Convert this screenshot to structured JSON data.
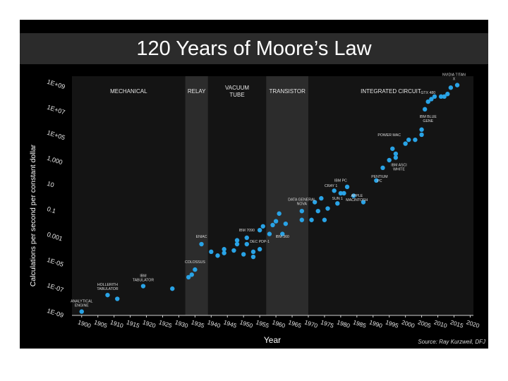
{
  "title": "120 Years of Moore’s Law",
  "colors": {
    "background": "#000000",
    "plot_bg": "#141414",
    "shaded_era": "#2c2c2c",
    "point": "#29a3e6",
    "title_bar": "#2b2b2b",
    "text": "#ffffff"
  },
  "chart_data": {
    "type": "scatter",
    "title": "120 Years of Moore’s Law",
    "xlabel": "Year",
    "ylabel": "Calculations per second per constant dollar",
    "source": "Source: Ray Kurzweil, DFJ",
    "y_scale": "log",
    "xlim": [
      1897,
      2021
    ],
    "ylim_log10": [
      -9.4,
      9.4
    ],
    "x_ticks": [
      1900,
      1905,
      1910,
      1915,
      1920,
      1925,
      1930,
      1935,
      1940,
      1945,
      1950,
      1955,
      1960,
      1965,
      1970,
      1975,
      1980,
      1985,
      1990,
      1995,
      2000,
      2005,
      2010,
      2015,
      2020
    ],
    "y_ticks": [
      {
        "label": "1E+09",
        "exp": 9
      },
      {
        "label": "1E+07",
        "exp": 7
      },
      {
        "label": "1E+05",
        "exp": 5
      },
      {
        "label": "1,000",
        "exp": 3
      },
      {
        "label": "10",
        "exp": 1
      },
      {
        "label": "0.1",
        "exp": -1
      },
      {
        "label": "0.001",
        "exp": -3
      },
      {
        "label": "1E-05",
        "exp": -5
      },
      {
        "label": "1E-07",
        "exp": -7
      },
      {
        "label": "1E-09",
        "exp": -9
      }
    ],
    "eras": [
      {
        "label": "MECHANICAL",
        "start": 1897,
        "end": 1932,
        "shaded": false
      },
      {
        "label": "RELAY",
        "start": 1932,
        "end": 1939,
        "shaded": true
      },
      {
        "label": "VACUUM TUBE",
        "start": 1939,
        "end": 1957,
        "shaded": false
      },
      {
        "label": "TRANSISTOR",
        "start": 1957,
        "end": 1970,
        "shaded": true
      },
      {
        "label": "INTEGRATED CIRCUIT",
        "start": 1970,
        "end": 2021,
        "shaded": false
      }
    ],
    "points": [
      {
        "x": 1900,
        "y": -9.1
      },
      {
        "x": 1908,
        "y": -7.8
      },
      {
        "x": 1911,
        "y": -8.1
      },
      {
        "x": 1919,
        "y": -7.1
      },
      {
        "x": 1928,
        "y": -7.3
      },
      {
        "x": 1933,
        "y": -6.4
      },
      {
        "x": 1934,
        "y": -6.2
      },
      {
        "x": 1935,
        "y": -5.8
      },
      {
        "x": 1937,
        "y": -3.8
      },
      {
        "x": 1940,
        "y": -4.4
      },
      {
        "x": 1942,
        "y": -4.7
      },
      {
        "x": 1944,
        "y": -4.2
      },
      {
        "x": 1944,
        "y": -4.5
      },
      {
        "x": 1947,
        "y": -4.3
      },
      {
        "x": 1948,
        "y": -3.8
      },
      {
        "x": 1948,
        "y": -3.5
      },
      {
        "x": 1950,
        "y": -4.6
      },
      {
        "x": 1951,
        "y": -3.8
      },
      {
        "x": 1951,
        "y": -3.3
      },
      {
        "x": 1953,
        "y": -4.4
      },
      {
        "x": 1953,
        "y": -4.8
      },
      {
        "x": 1955,
        "y": -4.2
      },
      {
        "x": 1955,
        "y": -2.7
      },
      {
        "x": 1956,
        "y": -2.4
      },
      {
        "x": 1958,
        "y": -3.0
      },
      {
        "x": 1959,
        "y": -2.3
      },
      {
        "x": 1960,
        "y": -2.0
      },
      {
        "x": 1961,
        "y": -1.4
      },
      {
        "x": 1962,
        "y": -3.0
      },
      {
        "x": 1963,
        "y": -2.2
      },
      {
        "x": 1968,
        "y": -1.9
      },
      {
        "x": 1968,
        "y": -1.2
      },
      {
        "x": 1971,
        "y": -1.9
      },
      {
        "x": 1972,
        "y": -0.5
      },
      {
        "x": 1973,
        "y": -1.2
      },
      {
        "x": 1974,
        "y": -0.2
      },
      {
        "x": 1975,
        "y": -1.9
      },
      {
        "x": 1976,
        "y": -1.0
      },
      {
        "x": 1978,
        "y": 0.4
      },
      {
        "x": 1979,
        "y": -0.6
      },
      {
        "x": 1980,
        "y": 0.2
      },
      {
        "x": 1981,
        "y": 0.2
      },
      {
        "x": 1982,
        "y": 0.7
      },
      {
        "x": 1984,
        "y": 0.0
      },
      {
        "x": 1987,
        "y": -0.5
      },
      {
        "x": 1991,
        "y": 1.2
      },
      {
        "x": 1993,
        "y": 2.2
      },
      {
        "x": 1995,
        "y": 2.8
      },
      {
        "x": 1996,
        "y": 3.7
      },
      {
        "x": 1997,
        "y": 3.3
      },
      {
        "x": 1997,
        "y": 3.0
      },
      {
        "x": 2000,
        "y": 4.1
      },
      {
        "x": 2001,
        "y": 4.4
      },
      {
        "x": 2003,
        "y": 4.4
      },
      {
        "x": 2005,
        "y": 4.8
      },
      {
        "x": 2005,
        "y": 5.2
      },
      {
        "x": 2006,
        "y": 6.8
      },
      {
        "x": 2007,
        "y": 7.4
      },
      {
        "x": 2008,
        "y": 7.6
      },
      {
        "x": 2009,
        "y": 7.8
      },
      {
        "x": 2011,
        "y": 7.8
      },
      {
        "x": 2012,
        "y": 7.8
      },
      {
        "x": 2013,
        "y": 8.0
      },
      {
        "x": 2014,
        "y": 8.5
      },
      {
        "x": 2016,
        "y": 8.7
      }
    ],
    "annotations": [
      {
        "text": "ANALYTICAL ENGINE",
        "x": 1900,
        "y": -8.6
      },
      {
        "text": "HOLLERITH TABULATOR",
        "x": 1908,
        "y": -7.3
      },
      {
        "text": "IBM TABULATOR",
        "x": 1919,
        "y": -6.6
      },
      {
        "text": "COLOSSUS",
        "x": 1935,
        "y": -5.3
      },
      {
        "text": "ENIAC",
        "x": 1937,
        "y": -3.3
      },
      {
        "text": "IBM 7090",
        "x": 1951,
        "y": -2.8
      },
      {
        "text": "DEC PDP-1",
        "x": 1955,
        "y": -3.7
      },
      {
        "text": "IBM 360",
        "x": 1962,
        "y": -3.3
      },
      {
        "text": "DATA GENERAL NOVA",
        "x": 1968,
        "y": -0.6
      },
      {
        "text": "CRAY 1",
        "x": 1977,
        "y": 0.7
      },
      {
        "text": "IBM PC",
        "x": 1980,
        "y": 1.1
      },
      {
        "text": "SUN 1",
        "x": 1979,
        "y": -0.3
      },
      {
        "text": "APPLE MACINTOSH",
        "x": 1985,
        "y": -0.3
      },
      {
        "text": "PENTIUM PC",
        "x": 1992,
        "y": 1.2
      },
      {
        "text": "IBM ASCI WHITE",
        "x": 1998,
        "y": 2.1
      },
      {
        "text": "POWER MAC",
        "x": 1995,
        "y": 4.7
      },
      {
        "text": "IBM BLUE GENE",
        "x": 2007,
        "y": 5.9
      },
      {
        "text": "GTX 480",
        "x": 2007,
        "y": 8.0
      },
      {
        "text": "NVIDIA TITAN X",
        "x": 2015,
        "y": 9.2
      }
    ]
  }
}
